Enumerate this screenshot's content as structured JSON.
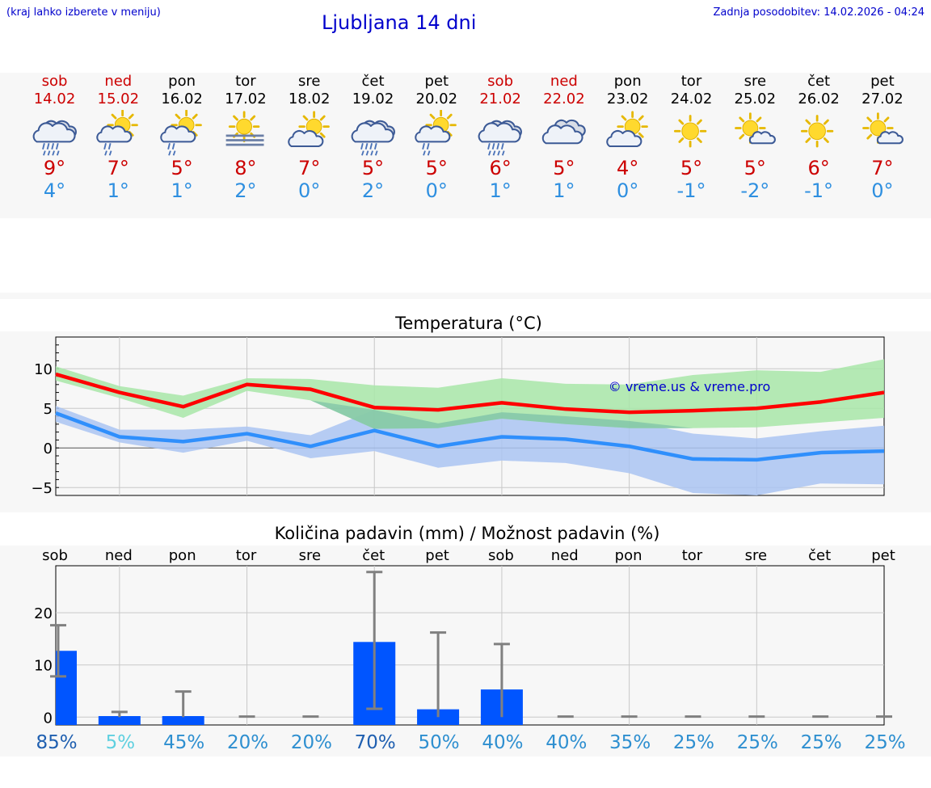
{
  "header": {
    "hint": "(kraj lahko izberete v meniju)",
    "title": "Ljubljana 14 dni",
    "updated": "Zadnja posodobitev: 14.02.2026 - 04:24"
  },
  "days": [
    {
      "name": "sob",
      "date": "14.02",
      "weekend": true,
      "icon": "rain-cloud-icon",
      "max": "9°",
      "min": "4°"
    },
    {
      "name": "ned",
      "date": "15.02",
      "weekend": true,
      "icon": "sun-cloud-rain-icon",
      "max": "7°",
      "min": "1°"
    },
    {
      "name": "pon",
      "date": "16.02",
      "weekend": false,
      "icon": "sun-cloud-rain-icon",
      "max": "5°",
      "min": "1°"
    },
    {
      "name": "tor",
      "date": "17.02",
      "weekend": false,
      "icon": "sun-fog-icon",
      "max": "8°",
      "min": "2°"
    },
    {
      "name": "sre",
      "date": "18.02",
      "weekend": false,
      "icon": "sun-cloud-icon",
      "max": "7°",
      "min": "0°"
    },
    {
      "name": "čet",
      "date": "19.02",
      "weekend": false,
      "icon": "rain-cloud-icon",
      "max": "5°",
      "min": "2°"
    },
    {
      "name": "pet",
      "date": "20.02",
      "weekend": false,
      "icon": "sun-cloud-rain-icon",
      "max": "5°",
      "min": "0°"
    },
    {
      "name": "sob",
      "date": "21.02",
      "weekend": true,
      "icon": "rain-cloud-icon",
      "max": "6°",
      "min": "1°"
    },
    {
      "name": "ned",
      "date": "22.02",
      "weekend": true,
      "icon": "cloud-icon",
      "max": "5°",
      "min": "1°"
    },
    {
      "name": "pon",
      "date": "23.02",
      "weekend": false,
      "icon": "sun-cloud-icon",
      "max": "4°",
      "min": "0°"
    },
    {
      "name": "tor",
      "date": "24.02",
      "weekend": false,
      "icon": "sun-icon",
      "max": "5°",
      "min": "-1°"
    },
    {
      "name": "sre",
      "date": "25.02",
      "weekend": false,
      "icon": "sun-small-cloud-icon",
      "max": "5°",
      "min": "-2°"
    },
    {
      "name": "čet",
      "date": "26.02",
      "weekend": false,
      "icon": "sun-icon",
      "max": "6°",
      "min": "-1°"
    },
    {
      "name": "pet",
      "date": "27.02",
      "weekend": false,
      "icon": "sun-small-cloud-icon",
      "max": "7°",
      "min": "0°"
    }
  ],
  "colors": {
    "weekend": "#cc0000",
    "max_line": "#ff0000",
    "min_line": "#2f8ffc",
    "max_band": "#a8e6a8",
    "min_band": "#aac4f2",
    "overlap_band": "#7cc0a6",
    "rain_bar": "#0055ff",
    "error_bar": "#808080"
  },
  "chart_data": [
    {
      "type": "line",
      "title": "Temperatura (°C)",
      "watermark": "© vreme.us & vreme.pro",
      "ylim": [
        -6,
        14
      ],
      "yticks": [
        10,
        5,
        0,
        -5
      ],
      "ytick_labels": [
        "10",
        "5",
        "0",
        "−5"
      ],
      "x": [
        "14.02",
        "15.02",
        "16.02",
        "17.02",
        "18.02",
        "19.02",
        "20.02",
        "21.02",
        "22.02",
        "23.02",
        "24.02",
        "25.02",
        "26.02",
        "27.02"
      ],
      "series": [
        {
          "name": "max",
          "values": [
            9.3,
            7.0,
            5.2,
            8.0,
            7.4,
            5.1,
            4.8,
            5.7,
            4.9,
            4.5,
            4.7,
            5.0,
            5.8,
            7.0
          ],
          "band_low": [
            8.5,
            6.3,
            3.8,
            7.2,
            6.0,
            2.4,
            2.5,
            3.7,
            3.0,
            2.5,
            2.5,
            2.6,
            3.2,
            3.8
          ],
          "band_high": [
            10.3,
            7.8,
            6.6,
            8.8,
            8.7,
            7.9,
            7.6,
            8.8,
            8.1,
            8.0,
            9.2,
            9.8,
            9.6,
            11.2
          ]
        },
        {
          "name": "min",
          "values": [
            4.4,
            1.4,
            0.8,
            1.8,
            0.2,
            2.2,
            0.2,
            1.4,
            1.1,
            0.2,
            -1.4,
            -1.5,
            -0.6,
            -0.4
          ],
          "band_low": [
            3.3,
            0.7,
            -0.6,
            0.9,
            -1.3,
            -0.4,
            -2.5,
            -1.6,
            -1.9,
            -3.2,
            -5.7,
            -6.0,
            -4.5,
            -4.6
          ],
          "band_high": [
            5.3,
            2.3,
            2.3,
            2.7,
            1.6,
            4.8,
            3.1,
            4.5,
            4.0,
            3.4,
            1.8,
            1.2,
            2.1,
            2.8
          ]
        }
      ]
    },
    {
      "type": "bar",
      "title": "Količina padavin (mm) / Možnost padavin (%)",
      "categories": [
        "sob",
        "ned",
        "pon",
        "tor",
        "sre",
        "čet",
        "pet",
        "sob",
        "ned",
        "pon",
        "tor",
        "sre",
        "čet",
        "pet"
      ],
      "values": [
        12.7,
        0.2,
        0.2,
        0,
        0,
        14.4,
        1.5,
        5.3,
        0,
        0,
        0,
        0,
        0,
        0
      ],
      "err_low": [
        7.8,
        0,
        0,
        0,
        0,
        1.6,
        0,
        0,
        0,
        0,
        0,
        0,
        0,
        0
      ],
      "err_high": [
        17.6,
        1.0,
        4.9,
        0.1,
        0.1,
        27.8,
        16.2,
        14.0,
        0.1,
        0.1,
        0.1,
        0.1,
        0.1,
        0.1
      ],
      "ylim": [
        -1.5,
        29
      ],
      "yticks": [
        20,
        10,
        0
      ],
      "ytick_labels": [
        "20",
        "10",
        "0"
      ],
      "probability": [
        "85%",
        "5%",
        "45%",
        "20%",
        "20%",
        "70%",
        "50%",
        "40%",
        "40%",
        "35%",
        "25%",
        "25%",
        "25%",
        "25%"
      ],
      "probability_colors": [
        "#1f5fb0",
        "#5fd0e0",
        "#2e8fd0",
        "#2e8fd0",
        "#2e8fd0",
        "#1f5fb0",
        "#2e8fd0",
        "#2e8fd0",
        "#2e8fd0",
        "#2e8fd0",
        "#2e8fd0",
        "#2e8fd0",
        "#2e8fd0",
        "#2e8fd0"
      ]
    }
  ]
}
